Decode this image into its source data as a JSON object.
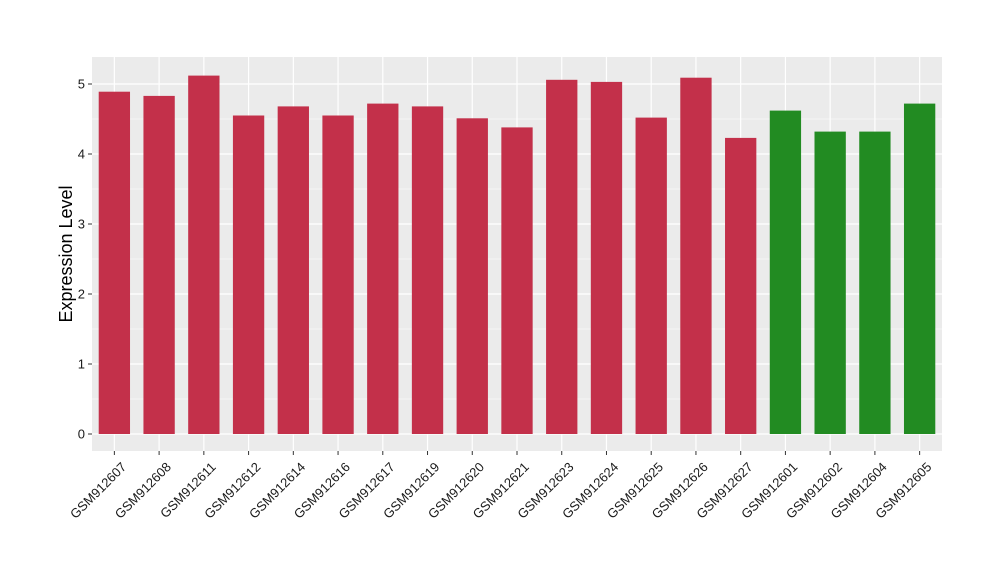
{
  "chart_data": {
    "type": "bar",
    "title": "",
    "xlabel": "",
    "ylabel": "Expression Level",
    "ylim": [
      -0.25,
      5.35
    ],
    "yticks": [
      0,
      1,
      2,
      3,
      4,
      5
    ],
    "yticks_labels": [
      "0",
      "1",
      "2",
      "3",
      "4",
      "5"
    ],
    "grid": true,
    "legend": "none",
    "categories": [
      "GSM912607",
      "GSM912608",
      "GSM912611",
      "GSM912612",
      "GSM912614",
      "GSM912616",
      "GSM912617",
      "GSM912619",
      "GSM912620",
      "GSM912621",
      "GSM912623",
      "GSM912624",
      "GSM912625",
      "GSM912626",
      "GSM912627",
      "GSM912601",
      "GSM912602",
      "GSM912604",
      "GSM912605"
    ],
    "values": [
      4.89,
      4.83,
      5.12,
      4.55,
      4.68,
      4.55,
      4.72,
      4.68,
      4.51,
      4.38,
      5.06,
      5.03,
      4.52,
      5.09,
      4.23,
      4.62,
      4.32,
      4.32,
      4.72
    ],
    "bar_groups": [
      "red",
      "red",
      "red",
      "red",
      "red",
      "red",
      "red",
      "red",
      "red",
      "red",
      "red",
      "red",
      "red",
      "red",
      "red",
      "green",
      "green",
      "green",
      "green"
    ],
    "colors": {
      "red": "#C3304A",
      "green": "#228B22",
      "panel_background": "#EBEBEB",
      "grid": "#FFFFFF"
    }
  }
}
